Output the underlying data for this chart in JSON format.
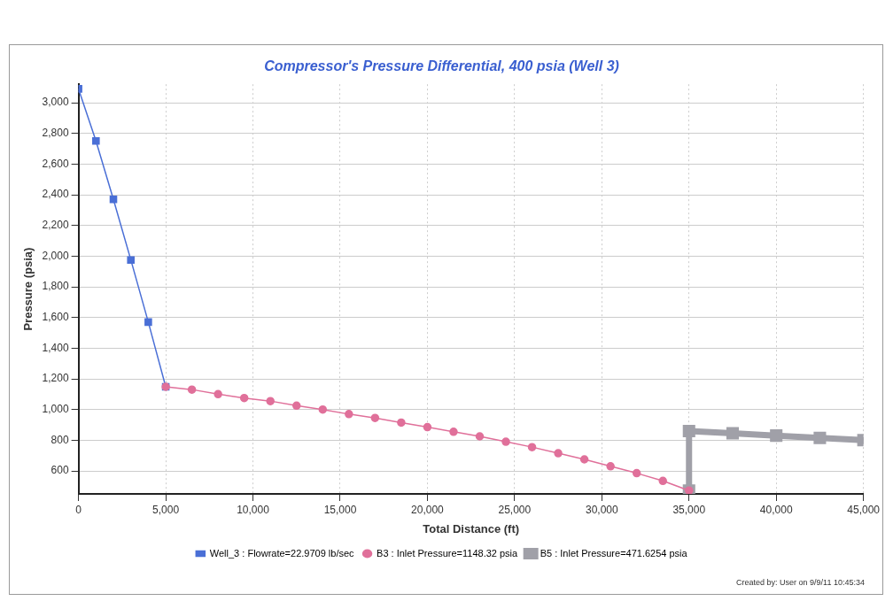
{
  "chart_data": {
    "type": "line",
    "title": "Compressor's Pressure Differential, 400 psia (Well 3)",
    "xlabel": "Total Distance (ft)",
    "ylabel": "Pressure (psia)",
    "xlim": [
      0,
      45000
    ],
    "xticks": [
      0,
      {
        "value": 5000,
        "label": "5,000"
      },
      {
        "value": 10000,
        "label": "10,000"
      },
      {
        "value": 15000,
        "label": "15,000"
      },
      {
        "value": 20000,
        "label": "20,000"
      },
      {
        "value": 25000,
        "label": "25,000"
      },
      {
        "value": 30000,
        "label": "30,000"
      },
      {
        "value": 35000,
        "label": "35,000"
      },
      {
        "value": 40000,
        "label": "40,000"
      },
      {
        "value": 45000,
        "label": "45,000"
      }
    ],
    "ylim": [
      450,
      3120
    ],
    "yticks": [
      600,
      800,
      {
        "value": 1000,
        "label": "1,000"
      },
      {
        "value": 1200,
        "label": "1,200"
      },
      {
        "value": 1400,
        "label": "1,400"
      },
      {
        "value": 1600,
        "label": "1,600"
      },
      {
        "value": 1800,
        "label": "1,800"
      },
      {
        "value": 2000,
        "label": "2,000"
      },
      {
        "value": 2200,
        "label": "2,200"
      },
      {
        "value": 2400,
        "label": "2,400"
      },
      {
        "value": 2600,
        "label": "2,600"
      },
      {
        "value": 2800,
        "label": "2,800"
      },
      {
        "value": 3000,
        "label": "3,000"
      }
    ],
    "grid": true,
    "legend": "bottom",
    "line_style": "solid",
    "annotations": [
      "Created by: User on 9/9/11 10:45:34"
    ],
    "series": [
      {
        "name": "Well_3 : Flowrate=22.9709 lb/sec",
        "color": "#4a6fd6",
        "marker": "square",
        "x": [
          0,
          1000,
          2000,
          3000,
          4000,
          5000
        ],
        "values": [
          3090,
          2750,
          2370,
          1975,
          1570,
          1148
        ]
      },
      {
        "name": "B3 : Inlet Pressure=1148.32 psia",
        "color": "#e0709a",
        "marker": "circle",
        "x": [
          5000,
          6500,
          8000,
          9500,
          11000,
          12500,
          14000,
          15500,
          17000,
          18500,
          20000,
          21500,
          23000,
          24500,
          26000,
          27500,
          29000,
          30500,
          32000,
          33500,
          35000
        ],
        "values": [
          1148,
          1130,
          1100,
          1075,
          1055,
          1025,
          1000,
          970,
          945,
          915,
          885,
          855,
          825,
          790,
          755,
          715,
          675,
          630,
          585,
          535,
          472
        ]
      },
      {
        "name": "B5 : Inlet Pressure=471.6254 psia",
        "color": "#a0a0a8",
        "marker": "square",
        "x": [
          35000,
          35000,
          37500,
          40000,
          42500,
          45000
        ],
        "values": [
          472,
          860,
          845,
          830,
          815,
          800
        ]
      }
    ]
  }
}
